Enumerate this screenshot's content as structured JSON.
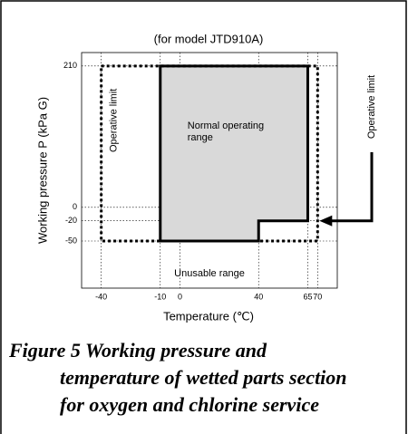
{
  "chart_data": {
    "type": "region",
    "title": "(for model JTD910A)",
    "x_label": "Temperature (℃)",
    "y_label": "Working pressure P (kPa G)",
    "xlim": [
      -50,
      80
    ],
    "xticks": [
      -40,
      -10,
      0,
      40,
      65,
      70
    ],
    "ylim": [
      -120,
      230
    ],
    "yticks": [
      -50,
      -20,
      0,
      210
    ],
    "grid": true,
    "series": [
      {
        "name": "Normal operating range",
        "color": "#d9d9d9",
        "x": [
          -10,
          65,
          65,
          40,
          40,
          -10
        ],
        "values": [
          210,
          210,
          -20,
          -20,
          -50,
          -50
        ]
      },
      {
        "name": "Operative limit",
        "x": [
          -40,
          70,
          70,
          -40
        ],
        "values": [
          210,
          210,
          -50,
          -50
        ]
      }
    ],
    "annotations": [
      "Unusable range",
      "Operative limit"
    ]
  },
  "caption": {
    "lines": [
      "Figure 5   Working pressure and",
      "temperature of wetted parts section",
      "for oxygen and chlorine service"
    ]
  }
}
